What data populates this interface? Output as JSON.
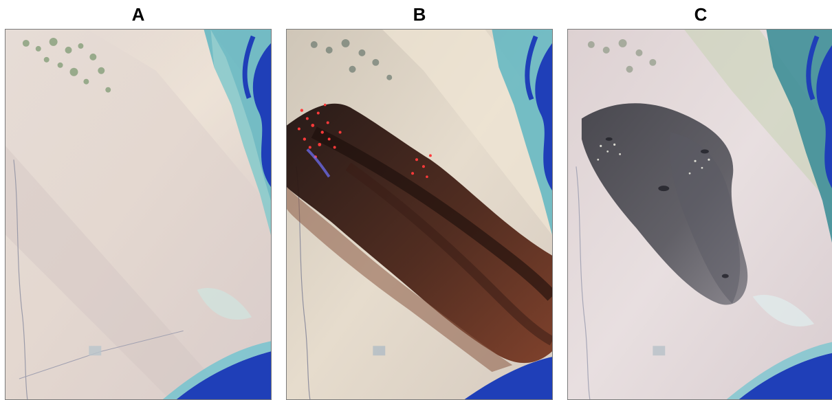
{
  "panels": [
    {
      "label": "A",
      "scene": "clear"
    },
    {
      "label": "B",
      "scene": "active-smoke"
    },
    {
      "label": "C",
      "scene": "residual-haze"
    }
  ],
  "colors": {
    "desert_light": "#e9dcd2",
    "desert_pink": "#ddd0cc",
    "vegetation": "#7f9a73",
    "water_deep": "#1f3fb8",
    "water_shallow": "#5fb6c2",
    "smoke_dark": "#2a1712",
    "smoke_brown": "#6b3424",
    "fire_red": "#ff3a3a",
    "haze_grey": "#4a4a52"
  }
}
